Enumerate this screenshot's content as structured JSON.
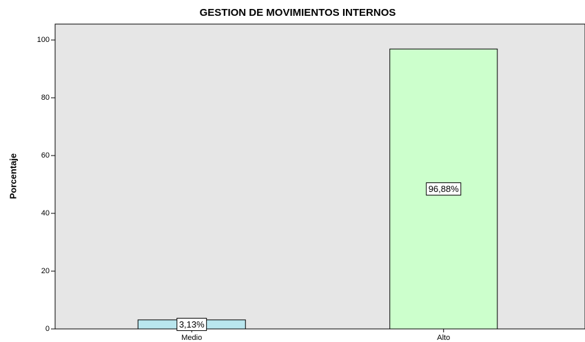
{
  "chart_data": {
    "type": "bar",
    "title": "GESTION DE MOVIMIENTOS INTERNOS",
    "ylabel": "Porcentaje",
    "categories": [
      "Medio",
      "Alto"
    ],
    "values": [
      3.13,
      96.88
    ],
    "value_labels": [
      "3,13%",
      "96,88%"
    ],
    "colors": [
      "#b9e6ee",
      "#ccffcc"
    ],
    "ylim": [
      0,
      105.5
    ],
    "yticks": [
      0,
      20,
      40,
      60,
      80,
      100
    ],
    "grid": false
  }
}
